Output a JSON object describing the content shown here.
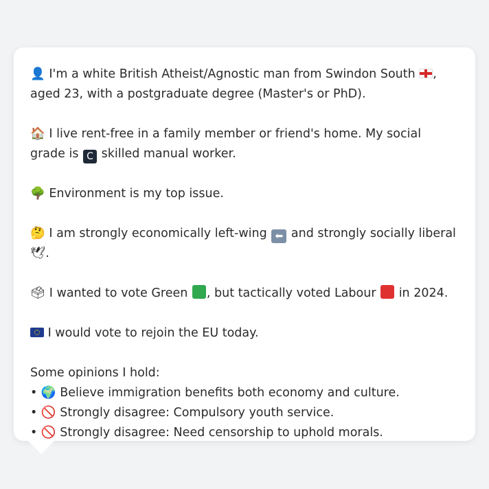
{
  "persona": {
    "intro": {
      "icon": "👤",
      "text_a": "I'm a white British Atheist/Agnostic man from Swindon South",
      "flag": "england-flag-icon",
      "text_b": ", aged 23, with a postgraduate degree (Master's or PhD)."
    },
    "housing": {
      "icon": "🏠",
      "text_a": "I live rent-free in a family member or friend's home. My social grade is",
      "grade_badge": "C",
      "text_b": "skilled manual worker."
    },
    "issue": {
      "icon": "🌳",
      "text": "Environment is my top issue."
    },
    "ideology": {
      "icon": "🤔",
      "text_a": "I am strongly economically left-wing",
      "left_icon": "⬅",
      "text_b": "and strongly socially liberal",
      "dove_icon": "🕊",
      "text_c": "."
    },
    "vote": {
      "icon": "🗳",
      "text_a": "I wanted to vote Green",
      "green_color": "#2fa84f",
      "text_b": ", but tactically voted Labour",
      "red_color": "#e03131",
      "text_c": "in 2024."
    },
    "eu": {
      "icon": "eu-flag-icon",
      "text": "I would vote to rejoin the EU today."
    },
    "opinions": {
      "heading": "Some opinions I hold:",
      "items": [
        {
          "bullet": "•",
          "icon": "🌍",
          "text": "Believe immigration benefits both economy and culture."
        },
        {
          "bullet": "•",
          "icon": "🚫",
          "text": "Strongly disagree: Compulsory youth service."
        },
        {
          "bullet": "•",
          "icon": "🚫",
          "text": "Strongly disagree: Need censorship to uphold morals."
        }
      ]
    }
  }
}
